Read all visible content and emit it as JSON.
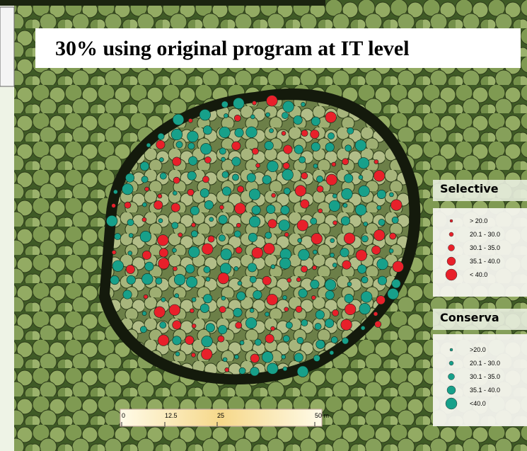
{
  "title": "30% using original program  at IT level",
  "legends": [
    {
      "heading": "Selective",
      "items": [
        "> 20.0",
        "20.1 - 30.0",
        "30.1 - 35.0",
        "35.1 - 40.0",
        "< 40.0"
      ]
    },
    {
      "heading": "Conserva",
      "items": [
        ">20.0",
        "20.1 - 30.0",
        "30.1 - 35.0",
        "35.1 - 40.0",
        "<40.0"
      ]
    }
  ],
  "scale_bar": {
    "labels": [
      "0",
      "12.5",
      "25",
      "50 m"
    ]
  }
}
